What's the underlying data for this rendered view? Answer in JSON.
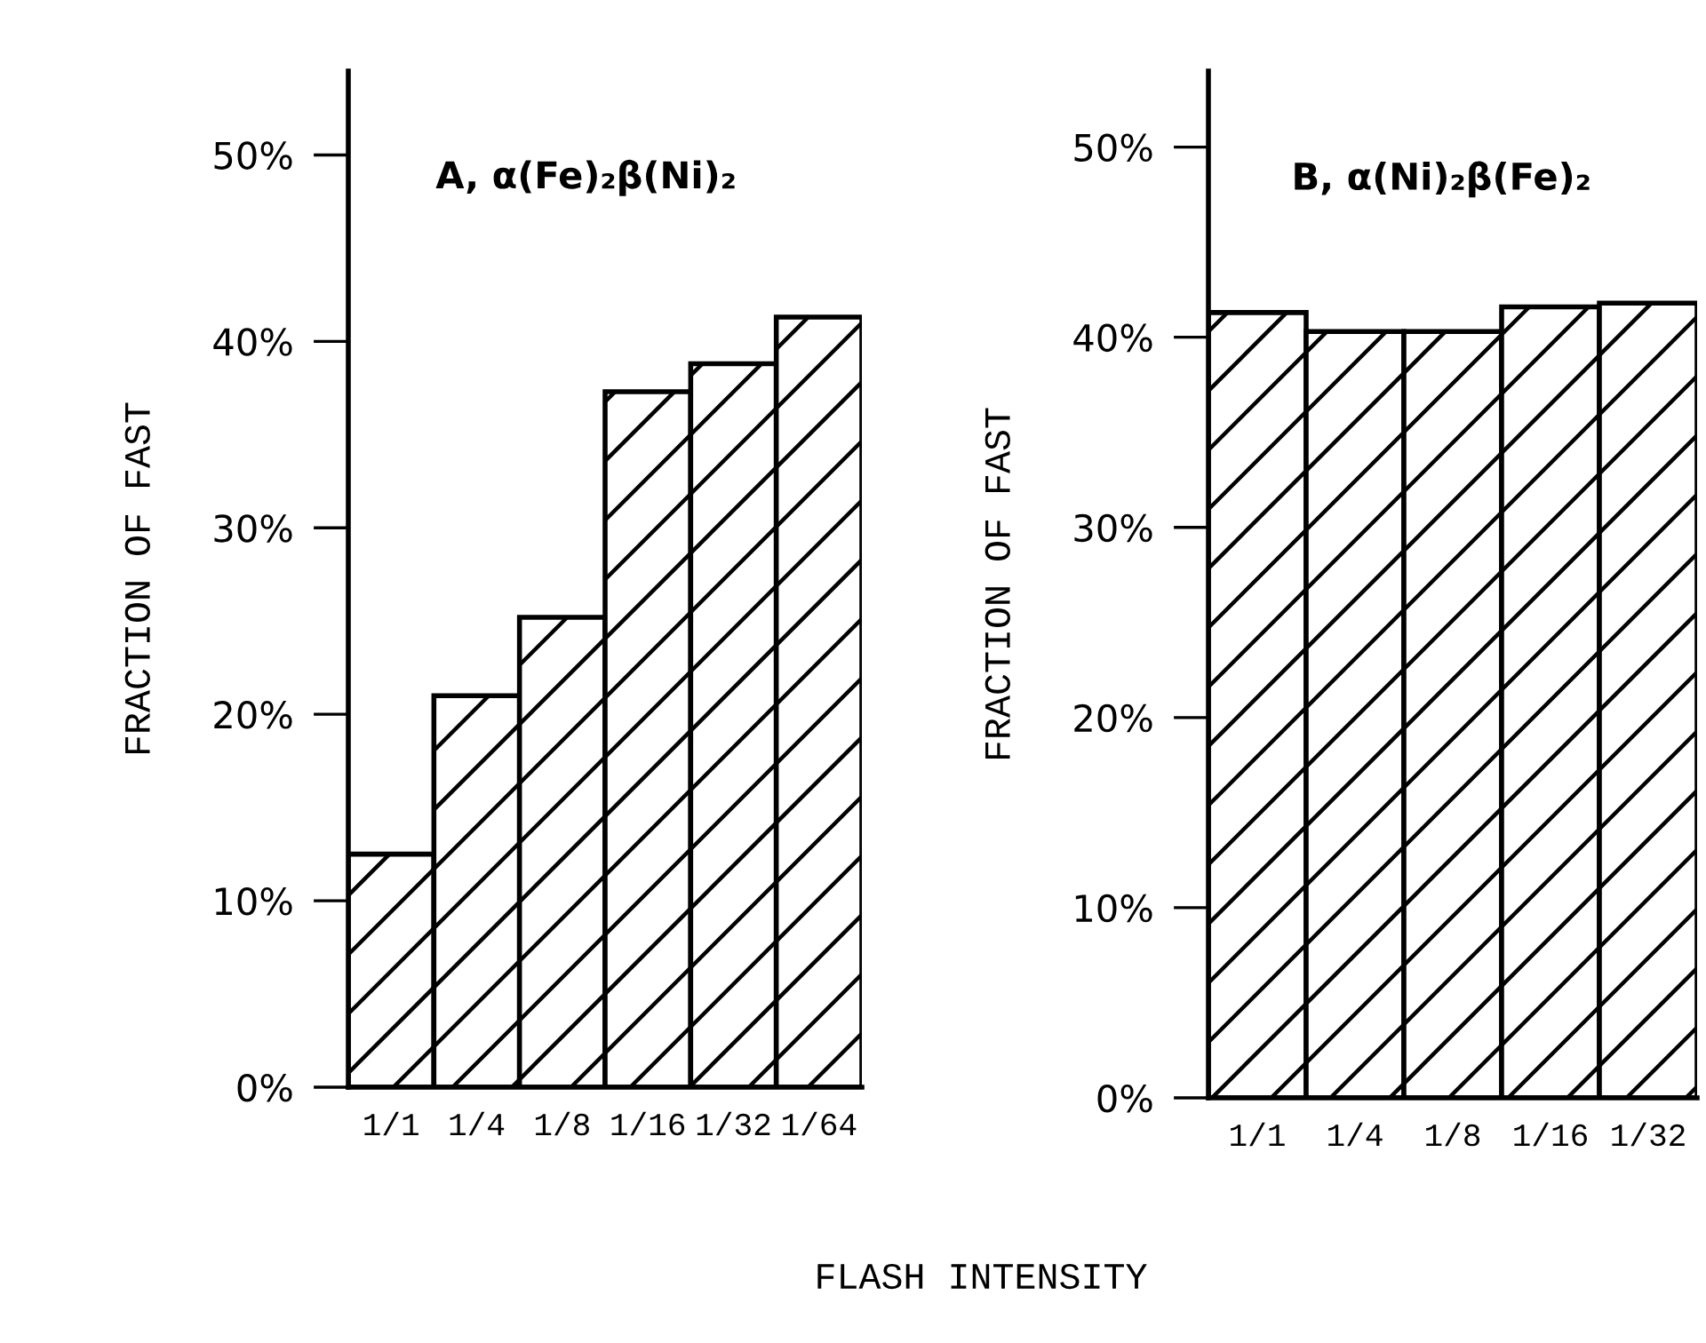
{
  "chart_data": [
    {
      "type": "bar",
      "title": "A, α(Fe)₂β(Ni)₂",
      "xlabel": "FLASH INTENSITY",
      "ylabel": "FRACTION OF FAST",
      "categories": [
        "1/1",
        "1/4",
        "1/8",
        "1/16",
        "1/32",
        "1/64"
      ],
      "values": [
        12.5,
        21,
        25.2,
        37.3,
        38.8,
        41.3
      ],
      "color": "#000000",
      "ylim": [
        0,
        54.5
      ],
      "yticks": [
        {
          "value": 0,
          "label": "0%"
        },
        {
          "value": 10,
          "label": "10%"
        },
        {
          "value": 20,
          "label": "20%"
        },
        {
          "value": 30,
          "label": "30%"
        },
        {
          "value": 40,
          "label": "40%"
        },
        {
          "value": 50,
          "label": "50%"
        }
      ],
      "grid": false
    },
    {
      "type": "bar",
      "title": "B, α(Ni)₂β(Fe)₂",
      "ylabel": "FRACTION OF FAST",
      "categories": [
        "1/1",
        "1/4",
        "1/8",
        "1/16",
        "1/32"
      ],
      "values": [
        41.3,
        40.3,
        40.3,
        41.6,
        41.8
      ],
      "color": "#000000",
      "ylim": [
        0,
        54
      ],
      "yticks": [
        {
          "value": 0,
          "label": "0%"
        },
        {
          "value": 10,
          "label": "10%"
        },
        {
          "value": 20,
          "label": "20%"
        },
        {
          "value": 30,
          "label": "30%"
        },
        {
          "value": 40,
          "label": "40%"
        },
        {
          "value": 50,
          "label": "50%"
        }
      ],
      "grid": false
    }
  ]
}
